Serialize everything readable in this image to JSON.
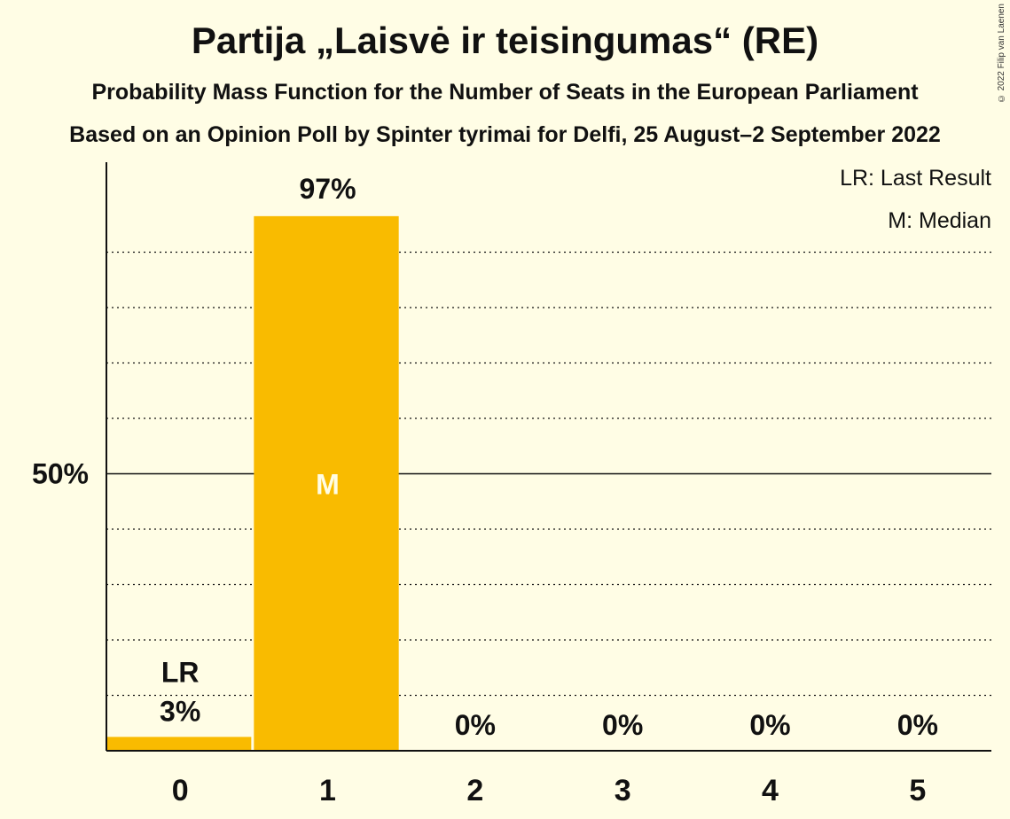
{
  "title": "Partija „Laisvė ir teisingumas“ (RE)",
  "subtitle1": "Probability Mass Function for the Number of Seats in the European Parliament",
  "subtitle2": "Based on an Opinion Poll by Spinter tyrimai for Delfi, 25 August–2 September 2022",
  "copyright": "© 2022 Filip van Laenen",
  "legend": {
    "last_result": "LR: Last Result",
    "median": "M: Median"
  },
  "colors": {
    "bar": "#F9BB00",
    "background": "#FFFDE5",
    "median_text": "#FFFDE5"
  },
  "chart_data": {
    "type": "bar",
    "categories": [
      "0",
      "1",
      "2",
      "3",
      "4",
      "5"
    ],
    "values": [
      3,
      97,
      0,
      0,
      0,
      0
    ],
    "bar_values_exact": [
      2.5,
      96.5,
      0,
      0,
      0,
      0
    ],
    "data_labels": [
      "3%",
      "97%",
      "0%",
      "0%",
      "0%",
      "0%"
    ],
    "ylim": [
      0,
      100
    ],
    "ytick_label": "50%",
    "ytick_value": 50,
    "gridlines": [
      10,
      20,
      30,
      40,
      60,
      70,
      80,
      90
    ],
    "last_result_category": "0",
    "last_result_label": "LR",
    "median_category": "1",
    "median_label": "M",
    "legend_position": "top-right",
    "grid": true
  }
}
